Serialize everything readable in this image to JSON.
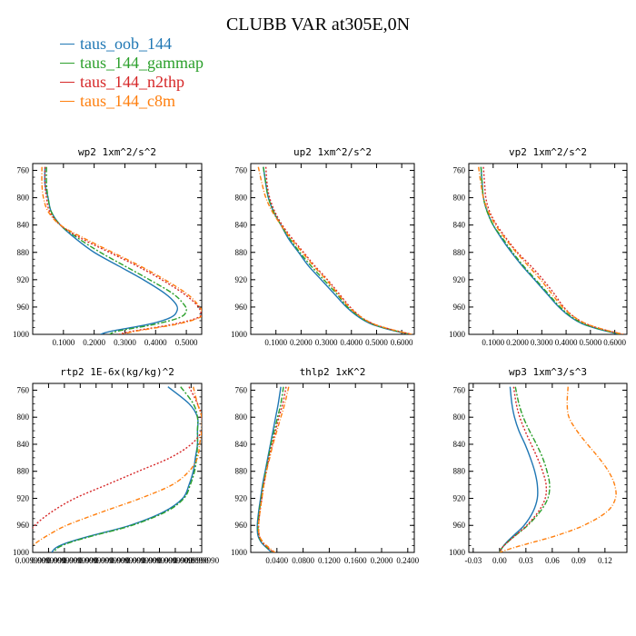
{
  "title": "CLUBB VAR at305E,0N",
  "legend": [
    {
      "name": "taus_oob_144",
      "color": "#1f77b4"
    },
    {
      "name": "taus_144_gammap",
      "color": "#2ca02c"
    },
    {
      "name": "taus_144_n2thp",
      "color": "#d62728"
    },
    {
      "name": "taus_144_c8m",
      "color": "#ff7f0e"
    }
  ],
  "chart_data": [
    {
      "type": "line",
      "title": "wp2   1xm^2/s^2",
      "xlim": [
        0,
        0.55
      ],
      "ylim": [
        1000,
        750
      ],
      "xticks": [
        0.1,
        0.2,
        0.3,
        0.4,
        0.5
      ],
      "xticklabels": [
        "0.1000",
        "0.2000",
        "0.3000",
        "0.4000",
        "0.5000"
      ],
      "yticks": [
        760,
        800,
        840,
        880,
        920,
        960,
        1000
      ],
      "y": [
        755,
        780,
        800,
        820,
        840,
        860,
        880,
        900,
        920,
        940,
        955,
        965,
        975,
        985,
        995,
        1000
      ],
      "series": [
        {
          "name": "taus_oob_144",
          "x": [
            0.04,
            0.04,
            0.05,
            0.06,
            0.09,
            0.14,
            0.2,
            0.28,
            0.36,
            0.43,
            0.465,
            0.47,
            0.45,
            0.38,
            0.26,
            0.22
          ]
        },
        {
          "name": "taus_144_gammap",
          "x": [
            0.045,
            0.045,
            0.05,
            0.06,
            0.09,
            0.15,
            0.22,
            0.3,
            0.38,
            0.455,
            0.49,
            0.5,
            0.48,
            0.4,
            0.28,
            0.25
          ]
        },
        {
          "name": "taus_144_n2thp",
          "x": [
            0.04,
            0.04,
            0.045,
            0.055,
            0.09,
            0.16,
            0.25,
            0.34,
            0.42,
            0.49,
            0.53,
            0.545,
            0.54,
            0.46,
            0.33,
            0.28
          ]
        },
        {
          "name": "taus_144_c8m",
          "x": [
            0.03,
            0.03,
            0.035,
            0.05,
            0.09,
            0.17,
            0.26,
            0.35,
            0.43,
            0.5,
            0.535,
            0.55,
            0.545,
            0.47,
            0.34,
            0.29
          ]
        }
      ]
    },
    {
      "type": "line",
      "title": "up2   1xm^2/s^2",
      "xlim": [
        0,
        0.65
      ],
      "ylim": [
        1000,
        750
      ],
      "xticks": [
        0.1,
        0.2,
        0.3,
        0.4,
        0.5,
        0.6
      ],
      "xticklabels": [
        "0.1000",
        "0.2000",
        "0.3000",
        "0.4000",
        "0.5000",
        "0.6000"
      ],
      "yticks": [
        760,
        800,
        840,
        880,
        920,
        960,
        1000
      ],
      "y": [
        755,
        780,
        800,
        820,
        840,
        860,
        880,
        900,
        920,
        940,
        960,
        975,
        985,
        993,
        1000
      ],
      "series": [
        {
          "name": "taus_oob_144",
          "x": [
            0.05,
            0.06,
            0.07,
            0.09,
            0.12,
            0.15,
            0.19,
            0.23,
            0.28,
            0.33,
            0.38,
            0.43,
            0.48,
            0.55,
            0.63
          ]
        },
        {
          "name": "taus_144_gammap",
          "x": [
            0.05,
            0.06,
            0.07,
            0.09,
            0.12,
            0.155,
            0.195,
            0.24,
            0.29,
            0.34,
            0.385,
            0.435,
            0.485,
            0.555,
            0.635
          ]
        },
        {
          "name": "taus_144_n2thp",
          "x": [
            0.06,
            0.065,
            0.075,
            0.095,
            0.125,
            0.165,
            0.21,
            0.255,
            0.305,
            0.35,
            0.395,
            0.44,
            0.49,
            0.56,
            0.64
          ]
        },
        {
          "name": "taus_144_c8m",
          "x": [
            0.03,
            0.045,
            0.06,
            0.085,
            0.12,
            0.16,
            0.205,
            0.25,
            0.3,
            0.345,
            0.39,
            0.44,
            0.49,
            0.56,
            0.64
          ]
        }
      ]
    },
    {
      "type": "line",
      "title": "vp2   1xm^2/s^2",
      "xlim": [
        0,
        0.65
      ],
      "ylim": [
        1000,
        750
      ],
      "xticks": [
        0.1,
        0.2,
        0.3,
        0.4,
        0.5,
        0.6
      ],
      "xticklabels": [
        "0.1000",
        "0.2000",
        "0.3000",
        "0.4000",
        "0.5000",
        "0.6000"
      ],
      "yticks": [
        760,
        800,
        840,
        880,
        920,
        960,
        1000
      ],
      "y": [
        755,
        780,
        800,
        820,
        840,
        860,
        880,
        900,
        920,
        940,
        960,
        975,
        985,
        993,
        1000
      ],
      "series": [
        {
          "name": "taus_oob_144",
          "x": [
            0.05,
            0.055,
            0.06,
            0.075,
            0.1,
            0.135,
            0.175,
            0.22,
            0.27,
            0.32,
            0.37,
            0.42,
            0.47,
            0.54,
            0.62
          ]
        },
        {
          "name": "taus_144_gammap",
          "x": [
            0.05,
            0.055,
            0.06,
            0.075,
            0.1,
            0.14,
            0.18,
            0.225,
            0.275,
            0.325,
            0.375,
            0.425,
            0.475,
            0.545,
            0.625
          ]
        },
        {
          "name": "taus_144_n2thp",
          "x": [
            0.06,
            0.065,
            0.07,
            0.085,
            0.115,
            0.155,
            0.2,
            0.255,
            0.305,
            0.35,
            0.39,
            0.435,
            0.485,
            0.555,
            0.635
          ]
        },
        {
          "name": "taus_144_c8m",
          "x": [
            0.04,
            0.05,
            0.06,
            0.08,
            0.11,
            0.15,
            0.195,
            0.245,
            0.295,
            0.34,
            0.385,
            0.435,
            0.485,
            0.555,
            0.635
          ]
        }
      ]
    },
    {
      "type": "line",
      "title": "rtp2   1E-6x(kg/kg)^2",
      "xlim": [
        0.0099,
        0.0103
      ],
      "ylim": [
        1000,
        750
      ],
      "xticks": [
        0.0099,
        0.0099375,
        0.009975,
        0.0100125,
        0.01005,
        0.0100875,
        0.010125,
        0.0101625,
        0.0102,
        0.0102375,
        0.0102749,
        0.0103
      ],
      "xticklabels": [
        "0.0099990",
        "0.0099990",
        "0.0099990",
        "0.0099990",
        "0.0099990",
        "0.0099990",
        "0.0099990",
        "0.0099990",
        "0.0099990",
        "0.0099990",
        "0.0099990",
        "0.0099990"
      ],
      "yticks": [
        760,
        800,
        840,
        880,
        920,
        960,
        1000
      ],
      "y": [
        755,
        780,
        800,
        820,
        840,
        860,
        880,
        900,
        920,
        940,
        960,
        975,
        985,
        993,
        1000
      ],
      "series": [
        {
          "name": "taus_oob_144",
          "x": [
            0.01022,
            0.01027,
            0.01029,
            0.01029,
            0.01029,
            0.010285,
            0.01028,
            0.01027,
            0.010255,
            0.01021,
            0.01013,
            0.01004,
            0.009985,
            0.009955,
            0.009945
          ]
        },
        {
          "name": "taus_144_gammap",
          "x": [
            0.01025,
            0.01028,
            0.01029,
            0.01029,
            0.01029,
            0.010288,
            0.010283,
            0.010273,
            0.010258,
            0.010215,
            0.010135,
            0.010045,
            0.00999,
            0.00996,
            0.00995
          ]
        },
        {
          "name": "taus_144_n2thp",
          "x": [
            0.01027,
            0.01029,
            0.0103,
            0.0103,
            0.010275,
            0.010225,
            0.01015,
            0.010075,
            0.01,
            0.009945,
            0.009905,
            0.00989,
            0.009885,
            0.009885,
            0.009885
          ]
        },
        {
          "name": "taus_144_c8m",
          "x": [
            0.01028,
            0.01029,
            0.0103,
            0.0103,
            0.010295,
            0.01029,
            0.01027,
            0.01023,
            0.010155,
            0.010065,
            0.00998,
            0.009935,
            0.00991,
            0.009895,
            0.00989
          ]
        }
      ]
    },
    {
      "type": "line",
      "title": "thlp2   1xK^2",
      "xlim": [
        0,
        0.25
      ],
      "ylim": [
        1000,
        750
      ],
      "xticks": [
        0.04,
        0.08,
        0.12,
        0.16,
        0.2,
        0.24
      ],
      "xticklabels": [
        "0.0400",
        "0.0800",
        "0.1200",
        "0.1600",
        "0.2000",
        "0.2400"
      ],
      "yticks": [
        760,
        800,
        840,
        880,
        920,
        960,
        1000
      ],
      "y": [
        755,
        780,
        800,
        820,
        840,
        860,
        880,
        900,
        920,
        940,
        960,
        975,
        985,
        993,
        1000
      ],
      "series": [
        {
          "name": "taus_oob_144",
          "x": [
            0.046,
            0.042,
            0.038,
            0.034,
            0.03,
            0.026,
            0.022,
            0.018,
            0.015,
            0.012,
            0.01,
            0.011,
            0.016,
            0.024,
            0.032
          ]
        },
        {
          "name": "taus_144_gammap",
          "x": [
            0.05,
            0.046,
            0.041,
            0.036,
            0.031,
            0.027,
            0.023,
            0.019,
            0.016,
            0.013,
            0.011,
            0.012,
            0.017,
            0.025,
            0.033
          ]
        },
        {
          "name": "taus_144_n2thp",
          "x": [
            0.054,
            0.049,
            0.043,
            0.038,
            0.033,
            0.028,
            0.024,
            0.02,
            0.017,
            0.014,
            0.012,
            0.013,
            0.018,
            0.026,
            0.035
          ]
        },
        {
          "name": "taus_144_c8m",
          "x": [
            0.058,
            0.052,
            0.046,
            0.04,
            0.034,
            0.029,
            0.024,
            0.02,
            0.017,
            0.014,
            0.012,
            0.013,
            0.019,
            0.028,
            0.037
          ]
        }
      ]
    },
    {
      "type": "line",
      "title": "wp3   1xm^3/s^3",
      "xlim": [
        -0.035,
        0.145
      ],
      "ylim": [
        1000,
        750
      ],
      "xticks": [
        -0.03,
        0,
        0.03,
        0.06,
        0.09,
        0.12
      ],
      "xticklabels": [
        "-0.03",
        "0.00",
        "0.03",
        "0.06",
        "0.09",
        "0.12"
      ],
      "yticks": [
        760,
        800,
        840,
        880,
        920,
        960,
        1000
      ],
      "y": [
        755,
        780,
        800,
        820,
        840,
        860,
        880,
        900,
        920,
        940,
        960,
        975,
        985,
        993,
        1000
      ],
      "series": [
        {
          "name": "taus_oob_144",
          "x": [
            0.012,
            0.014,
            0.017,
            0.022,
            0.029,
            0.035,
            0.04,
            0.043,
            0.043,
            0.038,
            0.028,
            0.016,
            0.008,
            0.003,
            0.0
          ]
        },
        {
          "name": "taus_144_gammap",
          "x": [
            0.018,
            0.022,
            0.027,
            0.034,
            0.042,
            0.049,
            0.054,
            0.057,
            0.055,
            0.046,
            0.032,
            0.018,
            0.009,
            0.003,
            0.0
          ]
        },
        {
          "name": "taus_144_n2thp",
          "x": [
            0.016,
            0.019,
            0.023,
            0.029,
            0.036,
            0.043,
            0.049,
            0.053,
            0.052,
            0.044,
            0.031,
            0.018,
            0.009,
            0.003,
            0.0
          ]
        },
        {
          "name": "taus_144_c8m",
          "x": [
            0.078,
            0.077,
            0.079,
            0.088,
            0.1,
            0.113,
            0.124,
            0.131,
            0.132,
            0.122,
            0.096,
            0.065,
            0.038,
            0.016,
            0.0
          ]
        }
      ]
    }
  ]
}
